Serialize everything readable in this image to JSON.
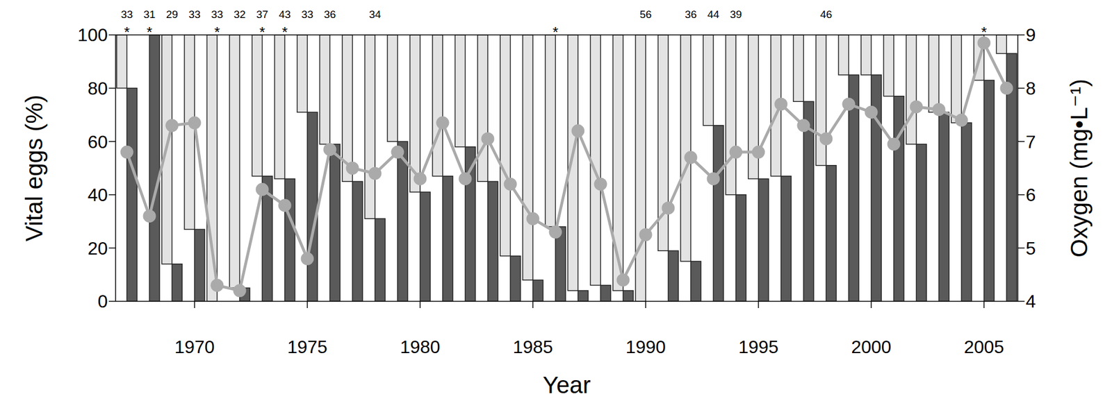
{
  "chart_data": {
    "type": "bar",
    "x_label": "Year",
    "y_label": "Vital eggs (%)",
    "y2_label": "Oxygen (mg•L⁻¹)",
    "categories": [
      null,
      null,
      null,
      1970,
      null,
      null,
      null,
      null,
      1975,
      null,
      null,
      null,
      null,
      1980,
      null,
      null,
      null,
      null,
      1985,
      null,
      null,
      null,
      null,
      1990,
      null,
      null,
      null,
      null,
      1995,
      null,
      null,
      null,
      null,
      2000,
      null,
      null,
      null,
      null,
      2005,
      null
    ],
    "series": [
      {
        "type": "bar",
        "color": "#5a5a5a",
        "values": [
          80,
          100,
          14,
          27,
          0,
          5,
          47,
          46,
          71,
          59,
          45,
          31,
          60,
          41,
          47,
          58,
          45,
          17,
          8,
          28,
          4,
          6,
          4,
          0,
          19,
          15,
          66,
          40,
          46,
          47,
          75,
          51,
          85,
          85,
          77,
          59,
          71,
          67,
          83,
          93
        ]
      },
      {
        "type": "line",
        "axis": "y2",
        "color": "#aaaaaa",
        "marker": "circle",
        "values": [
          6.8,
          5.6,
          7.3,
          7.35,
          4.3,
          4.2,
          6.1,
          5.8,
          4.8,
          6.85,
          6.5,
          6.4,
          6.8,
          6.3,
          7.35,
          6.3,
          7.05,
          6.2,
          5.55,
          5.3,
          7.2,
          6.2,
          4.4,
          5.25,
          5.75,
          6.7,
          6.3,
          6.8,
          6.8,
          7.7,
          7.3,
          7.05,
          7.7,
          7.55,
          6.95,
          7.65,
          7.6,
          7.4,
          8.85,
          8.0
        ]
      }
    ],
    "annotations": {
      "numbers": [
        33,
        31,
        29,
        33,
        33,
        32,
        37,
        43,
        33,
        36,
        null,
        34,
        null,
        null,
        null,
        null,
        null,
        null,
        null,
        null,
        null,
        null,
        null,
        56,
        null,
        36,
        44,
        39,
        null,
        null,
        null,
        46,
        null,
        null,
        null,
        null,
        null,
        null,
        null,
        null
      ],
      "marks": [
        "*",
        "*",
        null,
        null,
        "*",
        null,
        "*",
        "*",
        null,
        null,
        null,
        null,
        null,
        null,
        null,
        null,
        null,
        null,
        null,
        "*",
        null,
        null,
        null,
        null,
        null,
        null,
        null,
        null,
        null,
        null,
        null,
        null,
        null,
        null,
        null,
        null,
        null,
        null,
        "*",
        null
      ]
    },
    "ylim": [
      0,
      100
    ],
    "yticks": [
      0,
      20,
      40,
      60,
      80,
      100
    ],
    "y2lim": [
      4,
      9
    ],
    "y2ticks": [
      4,
      5,
      6,
      7,
      8,
      9
    ],
    "grid": false
  }
}
